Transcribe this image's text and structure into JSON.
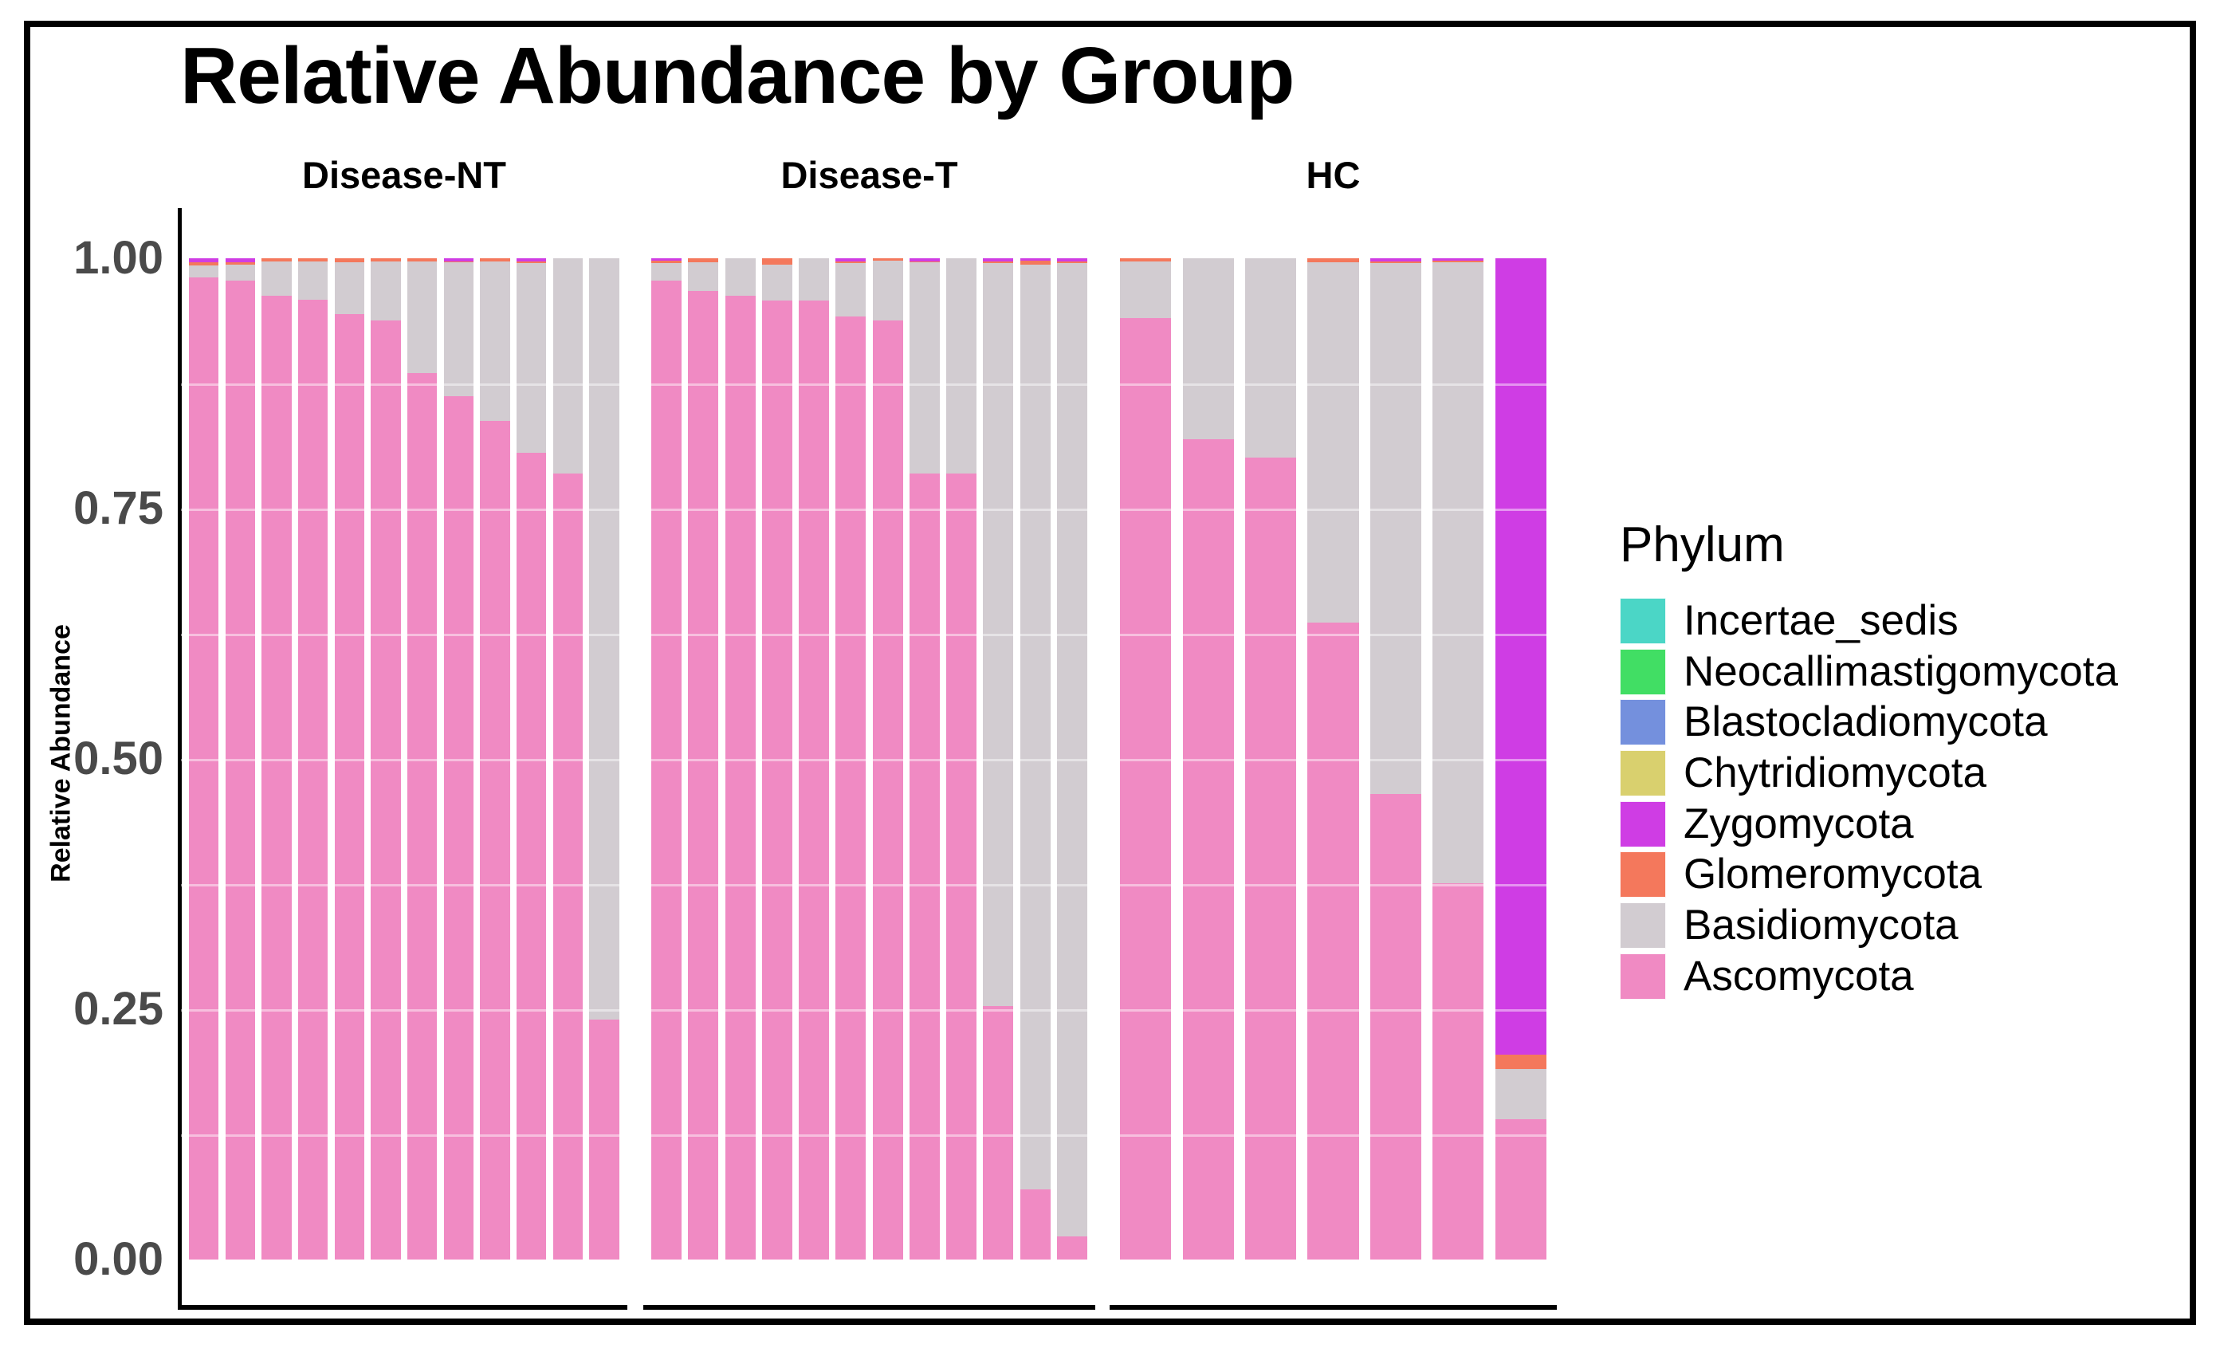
{
  "chart_data": {
    "type": "bar",
    "variant": "stacked-percent-faceted",
    "title": "Relative Abundance by Group",
    "ylabel": "Relative Abundance",
    "xlabel": "",
    "ylim": [
      0,
      1
    ],
    "grid": "subtle-white-overlay",
    "legend_position": "right",
    "legend_title": "Phylum",
    "legend": [
      {
        "label": "Incertae_sedis",
        "color": "#4BD6C6"
      },
      {
        "label": "Neocallimastigomycota",
        "color": "#41DE64"
      },
      {
        "label": "Blastocladiomycota",
        "color": "#7490DD"
      },
      {
        "label": "Chytridiomycota",
        "color": "#D9D06E"
      },
      {
        "label": "Zygomycota",
        "color": "#CF3DE4"
      },
      {
        "label": "Glomeromycota",
        "color": "#F4785C"
      },
      {
        "label": "Basidiomycota",
        "color": "#D2CCD1"
      },
      {
        "label": "Ascomycota",
        "color": "#F08AC3"
      }
    ],
    "y_ticks": [
      {
        "label": "1.00",
        "value": 1.0
      },
      {
        "label": "0.75",
        "value": 0.75
      },
      {
        "label": "0.50",
        "value": 0.5
      },
      {
        "label": "0.25",
        "value": 0.25
      },
      {
        "label": "0.00",
        "value": 0.0
      }
    ],
    "stack_order_bottom_to_top": [
      "Ascomycota",
      "Basidiomycota",
      "Glomeromycota",
      "Zygomycota"
    ],
    "facets": [
      {
        "label": "Disease-NT",
        "bars": [
          {
            "Ascomycota": 0.981,
            "Basidiomycota": 0.012,
            "Glomeromycota": 0.003,
            "Zygomycota": 0.004
          },
          {
            "Ascomycota": 0.978,
            "Basidiomycota": 0.016,
            "Glomeromycota": 0.002,
            "Zygomycota": 0.004
          },
          {
            "Ascomycota": 0.963,
            "Basidiomycota": 0.034,
            "Glomeromycota": 0.003,
            "Zygomycota": 0
          },
          {
            "Ascomycota": 0.959,
            "Basidiomycota": 0.038,
            "Glomeromycota": 0.003,
            "Zygomycota": 0
          },
          {
            "Ascomycota": 0.944,
            "Basidiomycota": 0.052,
            "Glomeromycota": 0.004,
            "Zygomycota": 0
          },
          {
            "Ascomycota": 0.938,
            "Basidiomycota": 0.059,
            "Glomeromycota": 0.003,
            "Zygomycota": 0
          },
          {
            "Ascomycota": 0.885,
            "Basidiomycota": 0.112,
            "Glomeromycota": 0.003,
            "Zygomycota": 0
          },
          {
            "Ascomycota": 0.862,
            "Basidiomycota": 0.134,
            "Glomeromycota": 0.001,
            "Zygomycota": 0.003
          },
          {
            "Ascomycota": 0.838,
            "Basidiomycota": 0.159,
            "Glomeromycota": 0.003,
            "Zygomycota": 0
          },
          {
            "Ascomycota": 0.806,
            "Basidiomycota": 0.189,
            "Glomeromycota": 0.002,
            "Zygomycota": 0.003
          },
          {
            "Ascomycota": 0.785,
            "Basidiomycota": 0.215,
            "Glomeromycota": 0,
            "Zygomycota": 0
          },
          {
            "Ascomycota": 0.24,
            "Basidiomycota": 0.76,
            "Glomeromycota": 0,
            "Zygomycota": 0
          }
        ]
      },
      {
        "label": "Disease-T",
        "bars": [
          {
            "Ascomycota": 0.978,
            "Basidiomycota": 0.017,
            "Glomeromycota": 0.003,
            "Zygomycota": 0.002
          },
          {
            "Ascomycota": 0.967,
            "Basidiomycota": 0.029,
            "Glomeromycota": 0.004,
            "Zygomycota": 0
          },
          {
            "Ascomycota": 0.963,
            "Basidiomycota": 0.037,
            "Glomeromycota": 0,
            "Zygomycota": 0
          },
          {
            "Ascomycota": 0.958,
            "Basidiomycota": 0.036,
            "Glomeromycota": 0.006,
            "Zygomycota": 0
          },
          {
            "Ascomycota": 0.958,
            "Basidiomycota": 0.042,
            "Glomeromycota": 0,
            "Zygomycota": 0
          },
          {
            "Ascomycota": 0.942,
            "Basidiomycota": 0.053,
            "Glomeromycota": 0.002,
            "Zygomycota": 0.003
          },
          {
            "Ascomycota": 0.938,
            "Basidiomycota": 0.06,
            "Glomeromycota": 0.002,
            "Zygomycota": 0
          },
          {
            "Ascomycota": 0.785,
            "Basidiomycota": 0.211,
            "Glomeromycota": 0.001,
            "Zygomycota": 0.003
          },
          {
            "Ascomycota": 0.785,
            "Basidiomycota": 0.215,
            "Glomeromycota": 0,
            "Zygomycota": 0
          },
          {
            "Ascomycota": 0.253,
            "Basidiomycota": 0.742,
            "Glomeromycota": 0.002,
            "Zygomycota": 0.003
          },
          {
            "Ascomycota": 0.07,
            "Basidiomycota": 0.924,
            "Glomeromycota": 0.004,
            "Zygomycota": 0.002
          },
          {
            "Ascomycota": 0.023,
            "Basidiomycota": 0.972,
            "Glomeromycota": 0.002,
            "Zygomycota": 0.003
          }
        ]
      },
      {
        "label": "HC",
        "bars": [
          {
            "Ascomycota": 0.94,
            "Basidiomycota": 0.057,
            "Glomeromycota": 0.003,
            "Zygomycota": 0
          },
          {
            "Ascomycota": 0.819,
            "Basidiomycota": 0.181,
            "Glomeromycota": 0,
            "Zygomycota": 0
          },
          {
            "Ascomycota": 0.801,
            "Basidiomycota": 0.199,
            "Glomeromycota": 0,
            "Zygomycota": 0
          },
          {
            "Ascomycota": 0.636,
            "Basidiomycota": 0.36,
            "Glomeromycota": 0.004,
            "Zygomycota": 0
          },
          {
            "Ascomycota": 0.465,
            "Basidiomycota": 0.53,
            "Glomeromycota": 0.002,
            "Zygomycota": 0.003
          },
          {
            "Ascomycota": 0.376,
            "Basidiomycota": 0.62,
            "Glomeromycota": 0.002,
            "Zygomycota": 0.002
          },
          {
            "Ascomycota": 0.14,
            "Basidiomycota": 0.05,
            "Glomeromycota": 0.015,
            "Zygomycota": 0.795
          }
        ]
      }
    ],
    "colors": {
      "axis_text": "#4a4a4a",
      "axis_line": "#000000",
      "background": "#ffffff",
      "border": "#000000"
    }
  }
}
